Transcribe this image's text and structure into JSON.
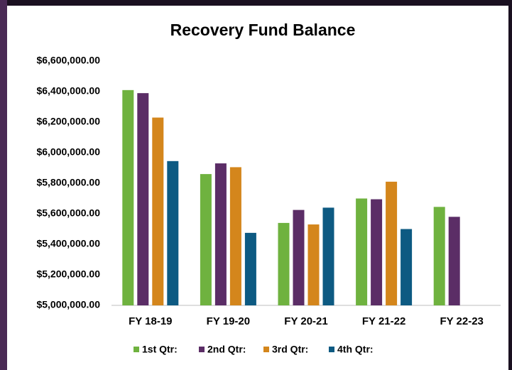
{
  "chart_data": {
    "type": "bar",
    "title": "Recovery Fund Balance",
    "categories": [
      "FY 18-19",
      "FY 19-20",
      "FY 20-21",
      "FY 21-22",
      "FY 22-23"
    ],
    "series": [
      {
        "name": "1st Qtr:",
        "color": "#6fb23f",
        "values": [
          6410000,
          5860000,
          5540000,
          5700000,
          5645000
        ]
      },
      {
        "name": "2nd Qtr:",
        "color": "#5b2d66",
        "values": [
          6390000,
          5930000,
          5625000,
          5695000,
          5580000
        ]
      },
      {
        "name": "3rd Qtr:",
        "color": "#d4861c",
        "values": [
          6230000,
          5905000,
          5530000,
          5810000,
          null
        ]
      },
      {
        "name": "4th Qtr:",
        "color": "#0d5a82",
        "values": [
          5945000,
          5475000,
          5640000,
          5500000,
          null
        ]
      }
    ],
    "ylim": [
      5000000,
      6600000
    ],
    "yticks": [
      {
        "value": 5000000,
        "label": "$5,000,000.00"
      },
      {
        "value": 5200000,
        "label": "$5,200,000.00"
      },
      {
        "value": 5400000,
        "label": "$5,400,000.00"
      },
      {
        "value": 5600000,
        "label": "$5,600,000.00"
      },
      {
        "value": 5800000,
        "label": "$5,800,000.00"
      },
      {
        "value": 6000000,
        "label": "$6,000,000.00"
      },
      {
        "value": 6200000,
        "label": "$6,200,000.00"
      },
      {
        "value": 6400000,
        "label": "$6,400,000.00"
      },
      {
        "value": 6600000,
        "label": "$6,600,000.00"
      }
    ],
    "grid": false,
    "legend": "bottom"
  }
}
